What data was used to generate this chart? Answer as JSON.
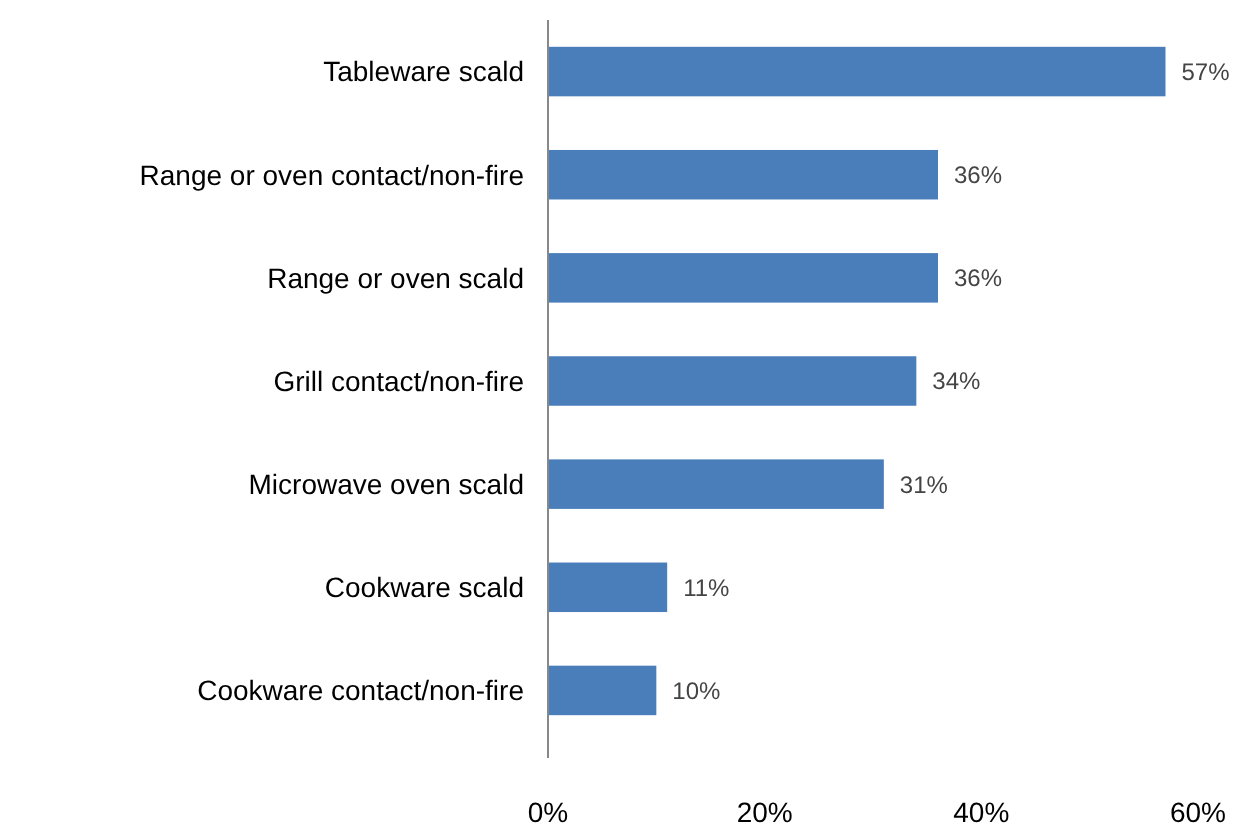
{
  "chart_data": {
    "type": "bar",
    "orientation": "horizontal",
    "categories": [
      "Tableware scald",
      "Range or oven contact/non-fire",
      "Range or oven scald",
      "Grill contact/non-fire",
      "Microwave oven scald",
      "Cookware scald",
      "Cookware contact/non-fire"
    ],
    "values": [
      57,
      36,
      36,
      34,
      31,
      11,
      10
    ],
    "value_labels": [
      "57%",
      "36%",
      "36%",
      "34%",
      "31%",
      "11%",
      "10%"
    ],
    "color": "#4a7ebb",
    "xlim": [
      0,
      60
    ],
    "xticks": [
      {
        "value": 0,
        "label": "0%"
      },
      {
        "value": 20,
        "label": "20%"
      },
      {
        "value": 40,
        "label": "40%"
      },
      {
        "value": 60,
        "label": "60%"
      }
    ],
    "grid": false
  }
}
